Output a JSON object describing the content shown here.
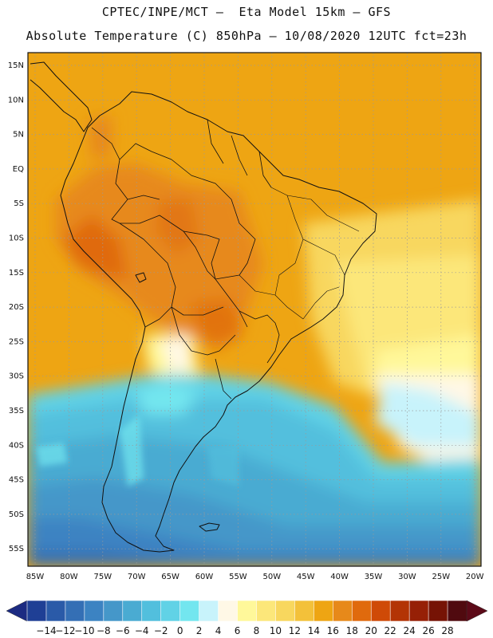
{
  "title": {
    "line1": "CPTEC/INPE/MCT –  Eta Model 15km – GFS",
    "line2": "Absolute Temperature (C) 850hPa – 10/08/2020 12UTC fct=23h"
  },
  "map": {
    "lat_labels": [
      "15N",
      "10N",
      "5N",
      "EQ",
      "5S",
      "10S",
      "15S",
      "20S",
      "25S",
      "30S",
      "35S",
      "40S",
      "45S",
      "50S",
      "55S"
    ],
    "lat_values": [
      15,
      10,
      5,
      0,
      -5,
      -10,
      -15,
      -20,
      -25,
      -30,
      -35,
      -40,
      -45,
      -50,
      -55
    ],
    "lon_labels": [
      "85W",
      "80W",
      "75W",
      "70W",
      "65W",
      "60W",
      "55W",
      "50W",
      "45W",
      "40W",
      "35W",
      "30W",
      "25W",
      "20W"
    ],
    "lon_values": [
      -85,
      -80,
      -75,
      -70,
      -65,
      -60,
      -55,
      -50,
      -45,
      -40,
      -35,
      -30,
      -25,
      -20
    ],
    "lon_range": [
      -86,
      -19
    ],
    "lat_range": [
      -58,
      17
    ],
    "grid": "dotted"
  },
  "colorbar": {
    "labels": [
      "-14",
      "-12",
      "-10",
      "-8",
      "-6",
      "-4",
      "-2",
      "0",
      "2",
      "4",
      "6",
      "8",
      "10",
      "12",
      "14",
      "16",
      "18",
      "20",
      "22",
      "24",
      "26",
      "28"
    ],
    "colors": [
      "#1f3f95",
      "#2a5aa8",
      "#346fb5",
      "#3c83c2",
      "#4597c9",
      "#4aabd2",
      "#52bfdd",
      "#61d2e6",
      "#73e6ef",
      "#c8f3fb",
      "#fff8e6",
      "#fff89a",
      "#fce77a",
      "#f8d75e",
      "#f3c13a",
      "#eea513",
      "#e7891a",
      "#e06a0d",
      "#cf4a07",
      "#b33405",
      "#962006",
      "#761305",
      "#500a0f"
    ],
    "low_arrow_color": "#1c2b82",
    "high_arrow_color": "#5c0a18"
  },
  "chart_data": {
    "type": "heatmap",
    "title": "Absolute Temperature (C) 850hPa",
    "variable": "Temperature",
    "units": "C",
    "level": "850hPa",
    "model": "Eta Model 15km - GFS",
    "run": "10/08/2020 12UTC",
    "forecast": "fct=23h",
    "x_range": [
      -86,
      -19
    ],
    "y_range": [
      -58,
      17
    ],
    "scale_min": -14,
    "scale_max": 28,
    "scale_step": 2
  }
}
